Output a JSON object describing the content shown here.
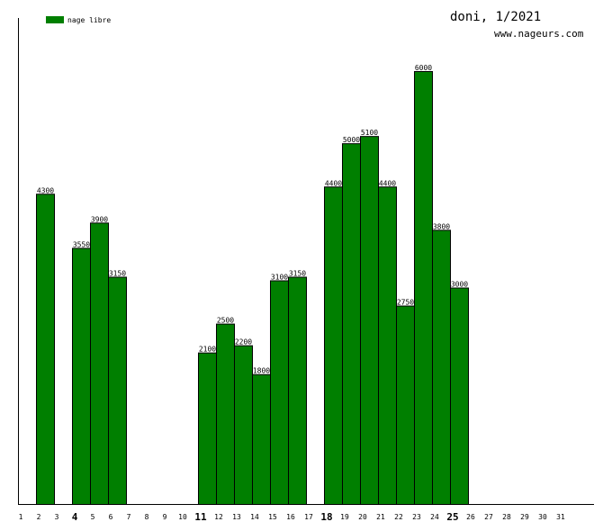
{
  "header": {
    "title": "doni, 1/2021",
    "site": "www.nageurs.com"
  },
  "colors": {
    "bar": "#007f00",
    "bar_stroke": "#000000",
    "axis": "#000000",
    "text": "#000000"
  },
  "chart_data": {
    "type": "bar",
    "title": "doni, 1/2021",
    "legend": {
      "position": "top-left",
      "entries": [
        "nage libre"
      ]
    },
    "grid": false,
    "categories": [
      "1",
      "2",
      "3",
      "4",
      "5",
      "6",
      "7",
      "8",
      "9",
      "10",
      "11",
      "12",
      "13",
      "14",
      "15",
      "16",
      "17",
      "18",
      "19",
      "20",
      "21",
      "22",
      "23",
      "24",
      "25",
      "26",
      "27",
      "28",
      "29",
      "30",
      "31"
    ],
    "emphasized_categories": [
      "4",
      "11",
      "18",
      "25"
    ],
    "series": [
      {
        "name": "nage libre",
        "values": [
          null,
          4300,
          null,
          3550,
          3900,
          3150,
          null,
          null,
          null,
          null,
          2100,
          2500,
          2200,
          1800,
          3100,
          3150,
          null,
          4400,
          5000,
          5100,
          4400,
          2750,
          6000,
          3800,
          3000,
          null,
          null,
          null,
          null,
          null,
          null
        ]
      }
    ],
    "ylim": [
      0,
      6000
    ]
  }
}
